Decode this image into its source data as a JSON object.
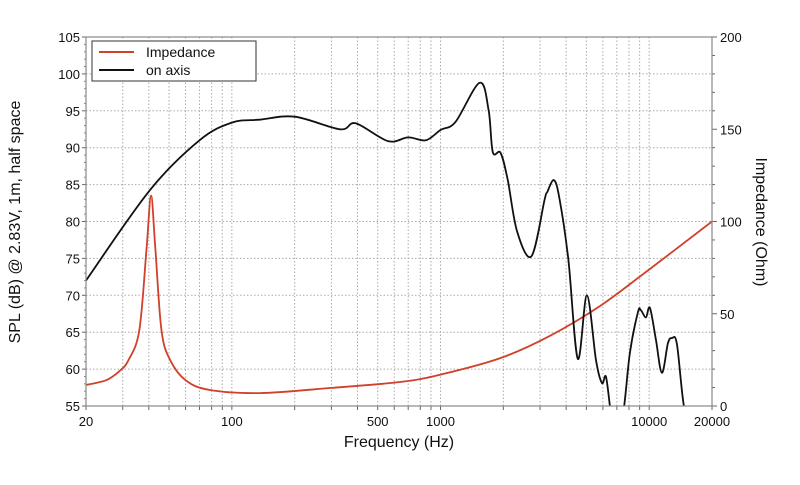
{
  "chart_data": {
    "type": "line",
    "xlabel": "Frequency (Hz)",
    "ylabel": "SPL (dB) @ 2.83V, 1m, half space",
    "y2label": "Impedance (Ohm)",
    "xscale": "log",
    "xlim": [
      20,
      20000
    ],
    "ylim": [
      55,
      105
    ],
    "y2lim": [
      0,
      200
    ],
    "grid": true,
    "legend_position": "top-left",
    "x_tick_labels": [
      "20",
      "100",
      "500",
      "1000",
      "10000",
      "20000"
    ],
    "x_tick_values": [
      20,
      100,
      500,
      1000,
      10000,
      20000
    ],
    "y_ticks": [
      55,
      60,
      65,
      70,
      75,
      80,
      85,
      90,
      95,
      100,
      105
    ],
    "y2_ticks": [
      0,
      50,
      100,
      150,
      200
    ],
    "series": [
      {
        "name": "Impedance",
        "axis": "right",
        "color": "#d0402a",
        "x": [
          20,
          25,
          29,
          32,
          36,
          39,
          41,
          43,
          46,
          50.6,
          60,
          78,
          136,
          300,
          640,
          1000,
          1940,
          3340,
          5780,
          10000,
          20000
        ],
        "y": [
          11.4,
          14,
          19,
          25,
          41,
          85,
          114,
          85,
          41,
          25,
          14,
          8.7,
          7,
          9.8,
          13,
          17,
          26,
          38,
          54,
          74,
          100
        ]
      },
      {
        "name": "on axis",
        "axis": "left",
        "color": "#111111",
        "x": [
          20,
          40.6,
          70,
          100,
          136,
          200,
          330,
          392,
          560,
          700,
          850,
          1000,
          1180,
          1540,
          1700,
          1780,
          1940,
          2100,
          2330,
          2730,
          3150,
          3250,
          3500,
          3720,
          4100,
          4550,
          5030,
          5560,
          5940,
          6200,
          6480,
          6620,
          7400,
          8080,
          8830,
          9120,
          9640,
          10080,
          10770,
          11500,
          12300,
          12860,
          13580,
          14660,
          16000
        ],
        "y": [
          72,
          84.3,
          91,
          93.4,
          93.8,
          94.2,
          92.5,
          93.3,
          90.9,
          91.4,
          91,
          92.4,
          93.5,
          98.8,
          95.1,
          89.4,
          89.3,
          85.6,
          78.6,
          75.3,
          82.9,
          84,
          85.6,
          83,
          74.8,
          61.4,
          70,
          61.2,
          58.1,
          59,
          55,
          53,
          53,
          62.2,
          67.7,
          68,
          67,
          68.3,
          64,
          59.5,
          63.5,
          64.2,
          63.4,
          55,
          52
        ]
      }
    ]
  }
}
